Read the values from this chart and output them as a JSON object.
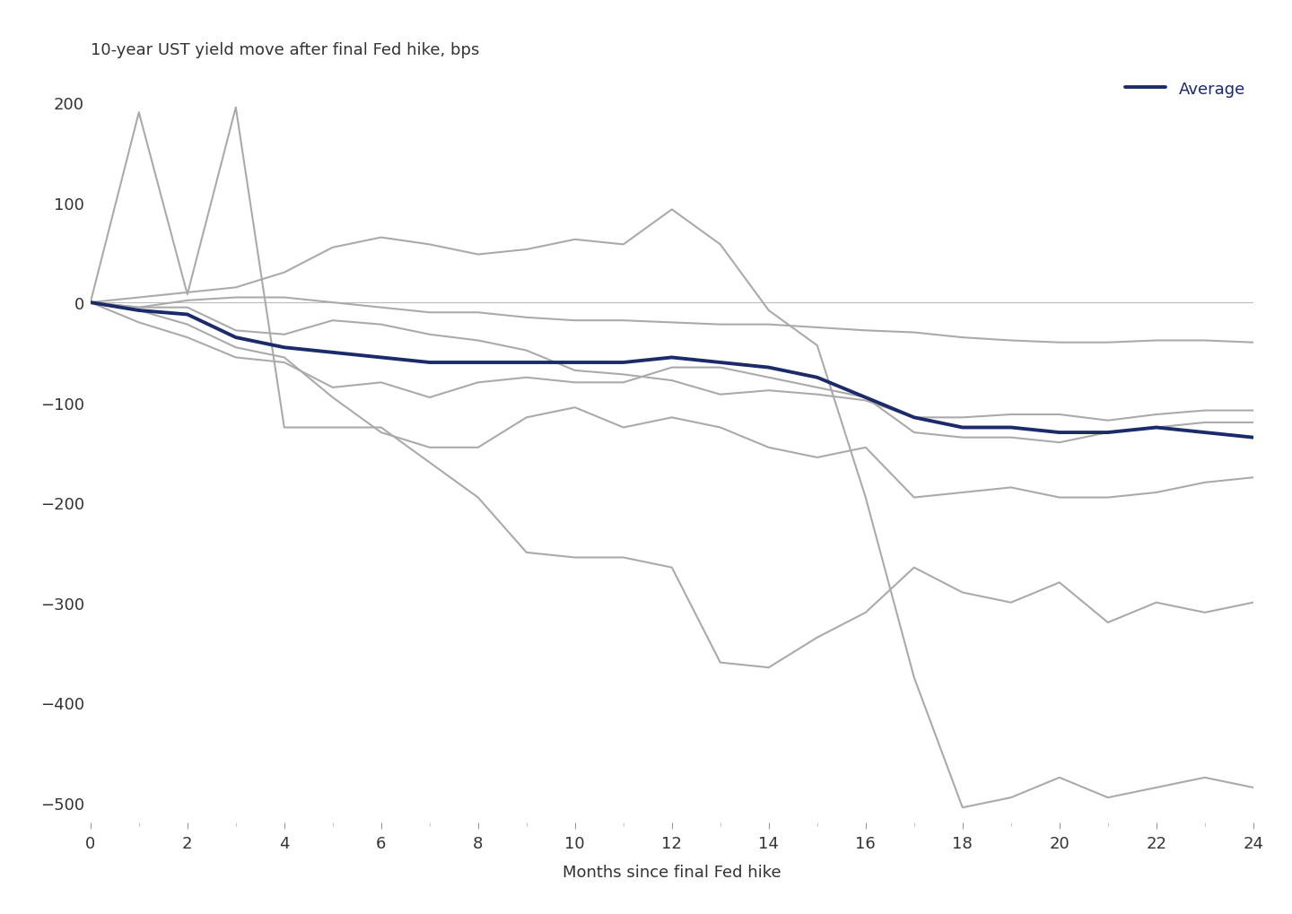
{
  "title": "10-year UST yield move after final Fed hike, bps",
  "xlabel": "Months since final Fed hike",
  "xlim": [
    0,
    24
  ],
  "ylim": [
    -520,
    230
  ],
  "yticks": [
    200,
    100,
    0,
    -100,
    -200,
    -300,
    -400,
    -500
  ],
  "xticks": [
    0,
    2,
    4,
    6,
    8,
    10,
    12,
    14,
    16,
    18,
    20,
    22,
    24
  ],
  "bg_color": "#ffffff",
  "zero_line_color": "#bbbbbb",
  "grey_color": "#aaaaaa",
  "avg_color": "#1b2a6b",
  "series": [
    [
      0,
      -5,
      2,
      5,
      5,
      0,
      -5,
      -10,
      -10,
      -15,
      -18,
      -18,
      -20,
      -22,
      -22,
      -25,
      -28,
      -30,
      -35,
      -38,
      -40,
      -40,
      -38,
      -38,
      -40
    ],
    [
      0,
      -20,
      -35,
      -55,
      -60,
      -85,
      -80,
      -95,
      -80,
      -75,
      -80,
      -80,
      -65,
      -65,
      -75,
      -85,
      -95,
      -130,
      -135,
      -135,
      -140,
      -130,
      -125,
      -120,
      -120
    ],
    [
      0,
      190,
      8,
      195,
      -125,
      -125,
      -125,
      -160,
      -195,
      -250,
      -255,
      -255,
      -265,
      -360,
      -365,
      -335,
      -310,
      -265,
      -290,
      -300,
      -280,
      -320,
      -300,
      -310,
      -300
    ],
    [
      0,
      5,
      10,
      15,
      30,
      55,
      65,
      58,
      48,
      53,
      63,
      58,
      93,
      58,
      -8,
      -43,
      -195,
      -375,
      -505,
      -495,
      -475,
      -495,
      -485,
      -475,
      -485
    ],
    [
      0,
      -8,
      -22,
      -45,
      -55,
      -95,
      -130,
      -145,
      -145,
      -115,
      -105,
      -125,
      -115,
      -125,
      -145,
      -155,
      -145,
      -195,
      -190,
      -185,
      -195,
      -195,
      -190,
      -180,
      -175
    ],
    [
      0,
      -5,
      -5,
      -28,
      -32,
      -18,
      -22,
      -32,
      -38,
      -48,
      -68,
      -72,
      -78,
      -92,
      -88,
      -92,
      -98,
      -115,
      -115,
      -112,
      -112,
      -118,
      -112,
      -108,
      -108
    ]
  ],
  "average": [
    0,
    -8,
    -12,
    -35,
    -45,
    -50,
    -55,
    -60,
    -60,
    -60,
    -60,
    -60,
    -55,
    -60,
    -65,
    -75,
    -95,
    -115,
    -125,
    -125,
    -130,
    -130,
    -125,
    -130,
    -135
  ],
  "legend_label": "Average",
  "avg_linewidth": 2.8,
  "grey_linewidth": 1.5,
  "title_fontsize": 13,
  "label_fontsize": 13,
  "tick_fontsize": 13
}
